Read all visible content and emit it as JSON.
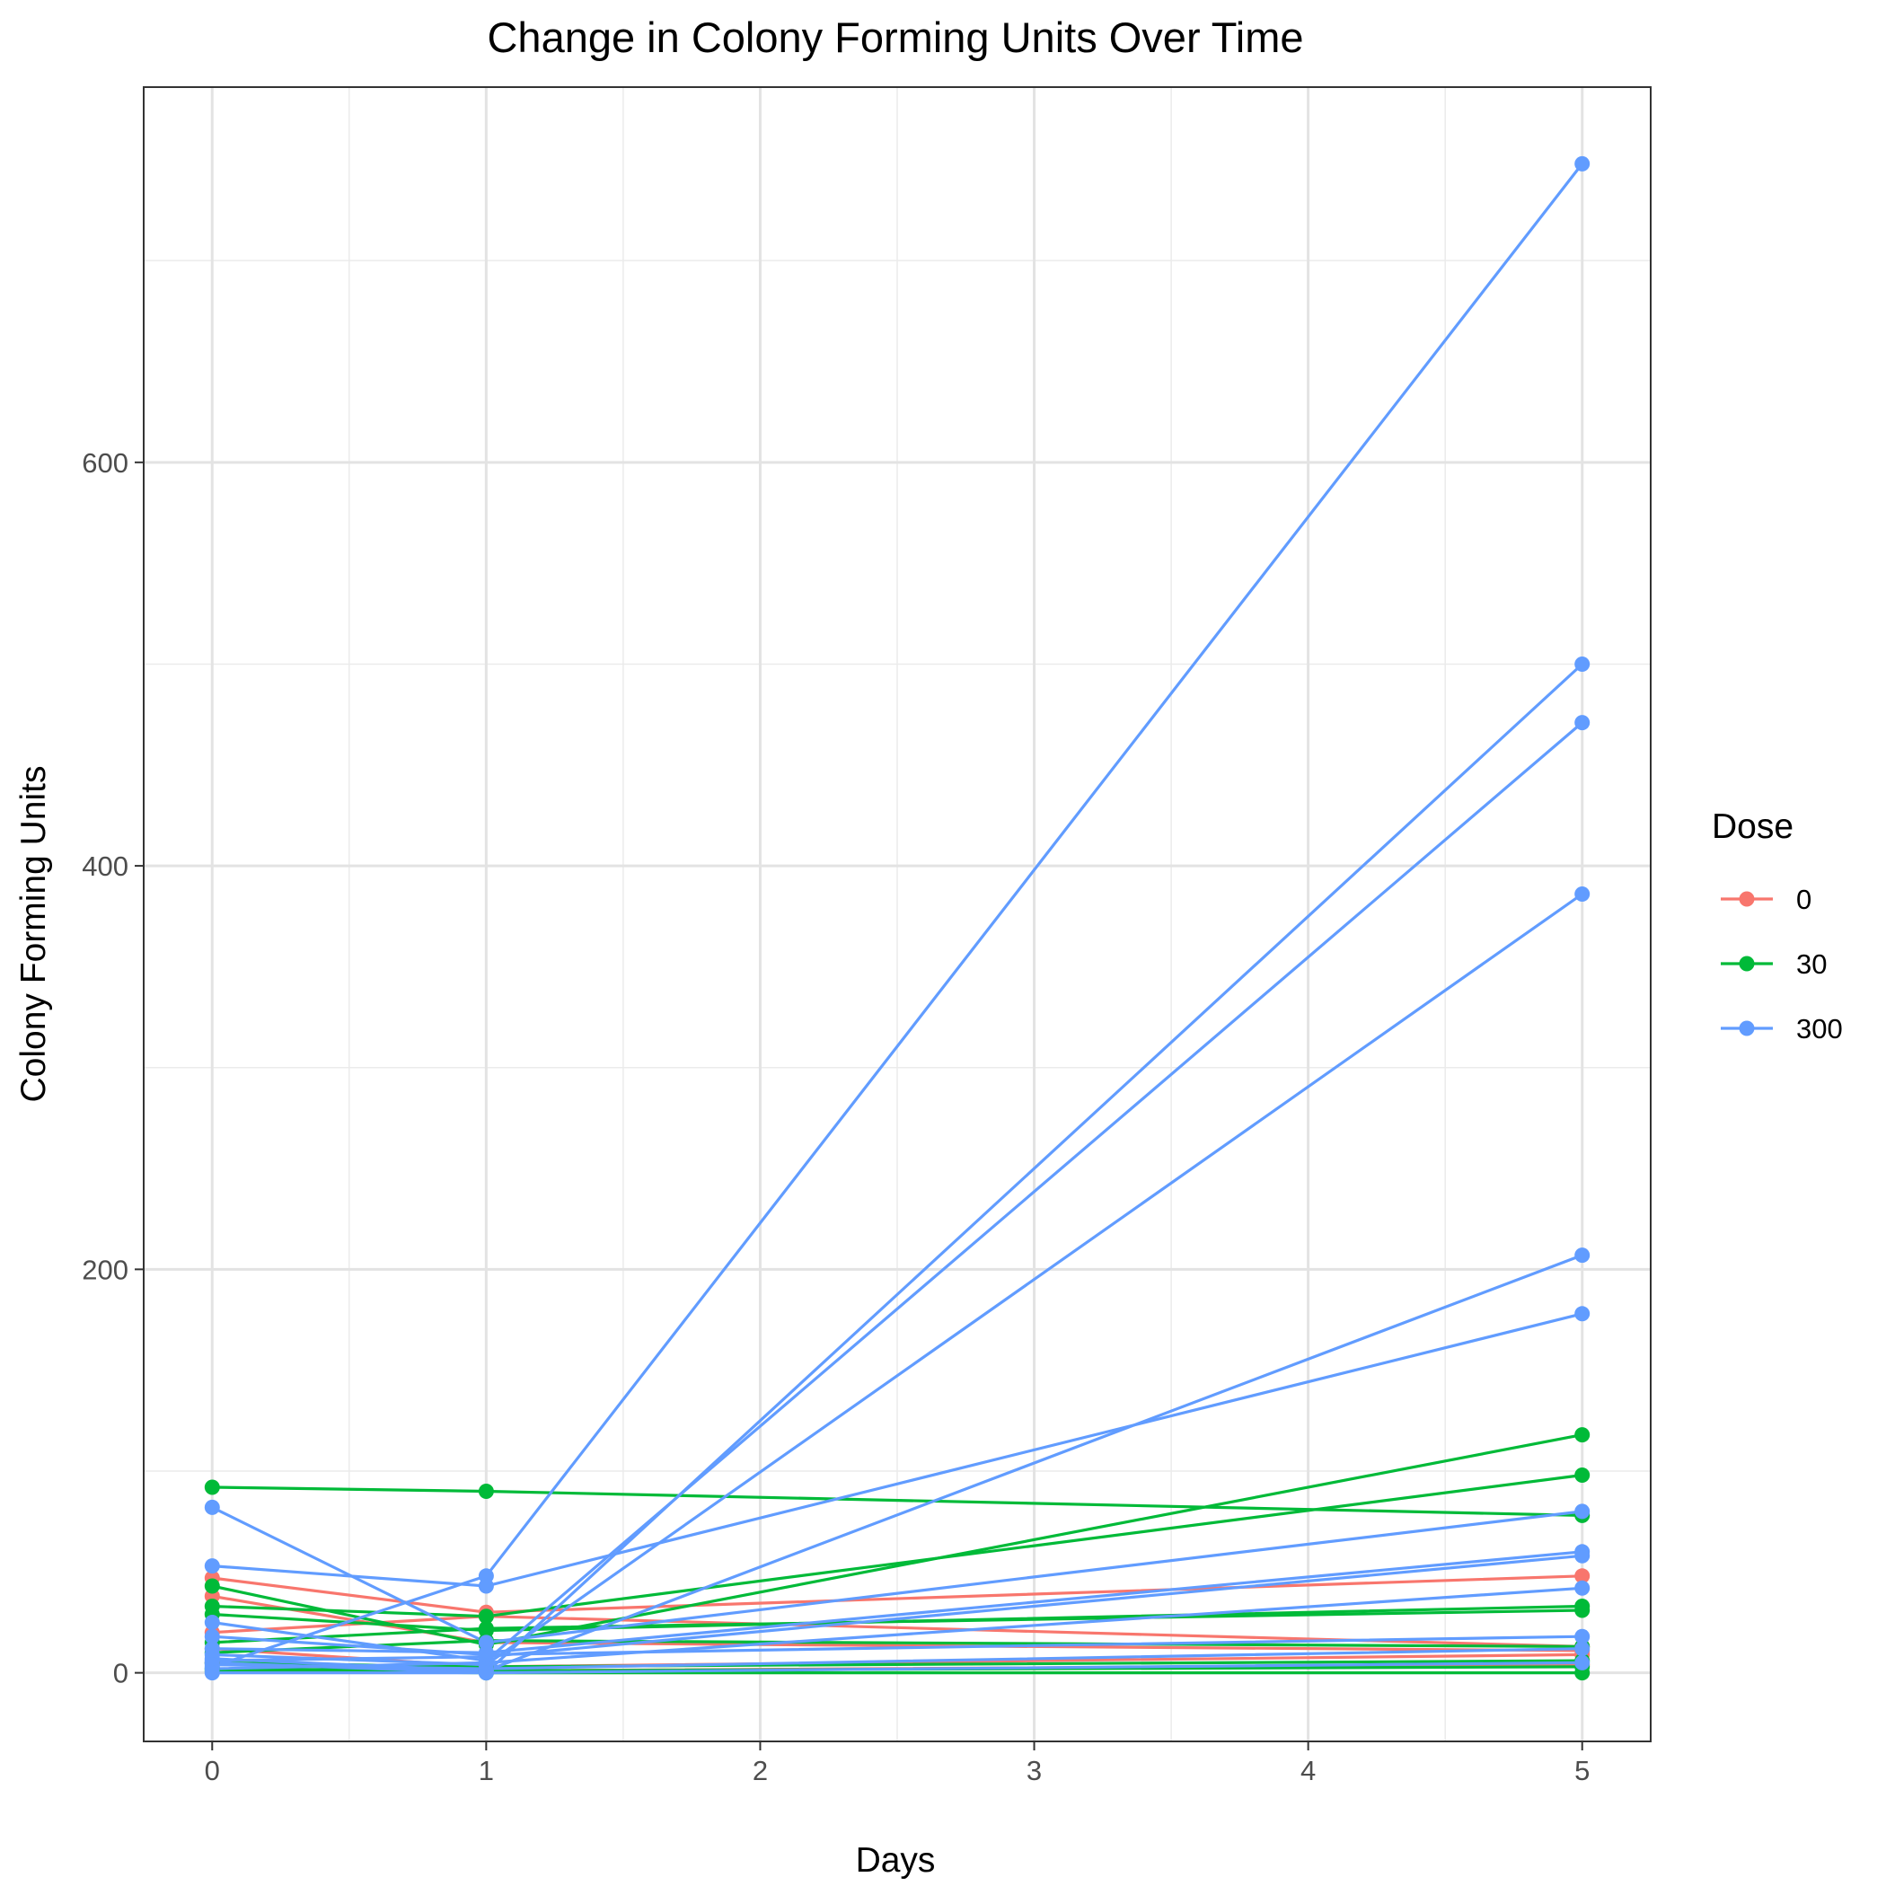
{
  "chart_data": {
    "type": "line",
    "title": "Change in Colony Forming Units Over Time",
    "xlabel": "Days",
    "ylabel": "Colony Forming Units",
    "xlim": [
      -0.25,
      5.25
    ],
    "ylim": [
      -34,
      786
    ],
    "x_ticks": [
      0,
      1,
      2,
      3,
      4,
      5
    ],
    "y_ticks": [
      0,
      200,
      400,
      600
    ],
    "x_tick_labels": [
      "0",
      "1",
      "2",
      "3",
      "4",
      "5"
    ],
    "y_tick_labels": [
      "0",
      "200",
      "400",
      "600"
    ],
    "grid": true,
    "legend": {
      "title": "Dose",
      "position": "right",
      "entries": [
        {
          "label": "0",
          "color": "#F8766D"
        },
        {
          "label": "30",
          "color": "#00BA38"
        },
        {
          "label": "300",
          "color": "#619CFF"
        }
      ]
    },
    "series": [
      {
        "group": "0",
        "color": "#F8766D",
        "x": [
          0,
          1,
          5
        ],
        "y": [
          47,
          30,
          48
        ]
      },
      {
        "group": "0",
        "color": "#F8766D",
        "x": [
          0,
          1,
          5
        ],
        "y": [
          38,
          15,
          11
        ]
      },
      {
        "group": "0",
        "color": "#F8766D",
        "x": [
          0,
          1,
          5
        ],
        "y": [
          20,
          28,
          13
        ]
      },
      {
        "group": "0",
        "color": "#F8766D",
        "x": [
          0,
          1,
          5
        ],
        "y": [
          12,
          3,
          9
        ]
      },
      {
        "group": "0",
        "color": "#F8766D",
        "x": [
          0,
          1,
          5
        ],
        "y": [
          5,
          1,
          4
        ]
      },
      {
        "group": "30",
        "color": "#00BA38",
        "x": [
          0,
          1,
          5
        ],
        "y": [
          92,
          90,
          78
        ]
      },
      {
        "group": "30",
        "color": "#00BA38",
        "x": [
          0,
          1,
          5
        ],
        "y": [
          43,
          14,
          118
        ]
      },
      {
        "group": "30",
        "color": "#00BA38",
        "x": [
          0,
          1,
          5
        ],
        "y": [
          33,
          28,
          98
        ]
      },
      {
        "group": "30",
        "color": "#00BA38",
        "x": [
          0,
          1,
          5
        ],
        "y": [
          29,
          21,
          33
        ]
      },
      {
        "group": "30",
        "color": "#00BA38",
        "x": [
          0,
          1,
          5
        ],
        "y": [
          15,
          22,
          31
        ]
      },
      {
        "group": "30",
        "color": "#00BA38",
        "x": [
          0,
          1,
          5
        ],
        "y": [
          10,
          16,
          13
        ]
      },
      {
        "group": "30",
        "color": "#00BA38",
        "x": [
          0,
          1,
          5
        ],
        "y": [
          5,
          3,
          6
        ]
      },
      {
        "group": "30",
        "color": "#00BA38",
        "x": [
          0,
          1,
          5
        ],
        "y": [
          2,
          1,
          3
        ]
      },
      {
        "group": "30",
        "color": "#00BA38",
        "x": [
          0,
          1,
          5
        ],
        "y": [
          1,
          0,
          0
        ]
      },
      {
        "group": "300",
        "color": "#619CFF",
        "x": [
          0,
          1,
          5
        ],
        "y": [
          3,
          48,
          748
        ]
      },
      {
        "group": "300",
        "color": "#619CFF",
        "x": [
          0,
          1,
          5
        ],
        "y": [
          5,
          0,
          500
        ]
      },
      {
        "group": "300",
        "color": "#619CFF",
        "x": [
          0,
          1,
          5
        ],
        "y": [
          25,
          6,
          471
        ]
      },
      {
        "group": "300",
        "color": "#619CFF",
        "x": [
          0,
          1,
          5
        ],
        "y": [
          9,
          4,
          386
        ]
      },
      {
        "group": "300",
        "color": "#619CFF",
        "x": [
          0,
          1,
          5
        ],
        "y": [
          7,
          1,
          207
        ]
      },
      {
        "group": "300",
        "color": "#619CFF",
        "x": [
          0,
          1,
          5
        ],
        "y": [
          53,
          43,
          178
        ]
      },
      {
        "group": "300",
        "color": "#619CFF",
        "x": [
          0,
          1,
          5
        ],
        "y": [
          82,
          15,
          80
        ]
      },
      {
        "group": "300",
        "color": "#619CFF",
        "x": [
          0,
          1,
          5
        ],
        "y": [
          12,
          10,
          60
        ]
      },
      {
        "group": "300",
        "color": "#619CFF",
        "x": [
          0,
          1,
          5
        ],
        "y": [
          6,
          8,
          58
        ]
      },
      {
        "group": "300",
        "color": "#619CFF",
        "x": [
          0,
          1,
          5
        ],
        "y": [
          2,
          5,
          42
        ]
      },
      {
        "group": "300",
        "color": "#619CFF",
        "x": [
          0,
          1,
          5
        ],
        "y": [
          18,
          9,
          18
        ]
      },
      {
        "group": "300",
        "color": "#619CFF",
        "x": [
          0,
          1,
          5
        ],
        "y": [
          4,
          2,
          12
        ]
      },
      {
        "group": "300",
        "color": "#619CFF",
        "x": [
          0,
          1,
          5
        ],
        "y": [
          0,
          0,
          5
        ]
      }
    ]
  }
}
